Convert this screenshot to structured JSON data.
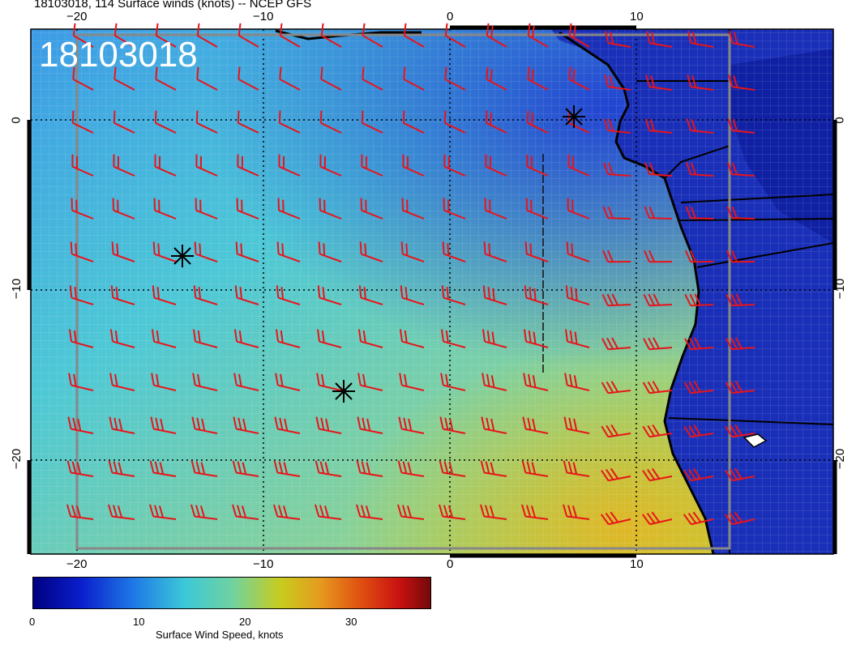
{
  "title": "18103018, 114 Surface winds (knots) -- NCEP GFS",
  "stamp": "18103018",
  "axes": {
    "x_ticks_top": [
      "−20",
      "−10",
      "0",
      "10"
    ],
    "x_ticks_bottom": [
      "−20",
      "−10",
      "0",
      "10"
    ],
    "y_ticks_left": [
      "0",
      "−10",
      "−20"
    ],
    "y_ticks_right": [
      "0",
      "−10",
      "−20"
    ]
  },
  "colorbar": {
    "label": "Surface Wind Speed, knots",
    "ticks": [
      "0",
      "10",
      "20",
      "30"
    ],
    "colors": [
      "#0a0a8c",
      "#1e3cd2",
      "#1e78e6",
      "#28b4dc",
      "#3cd2c8",
      "#78d29b",
      "#b4d25a",
      "#d2c814",
      "#e6a01e",
      "#e66414",
      "#c81414",
      "#781414"
    ]
  },
  "wind_barb_color": "#e8141a",
  "marker_count": 3
}
